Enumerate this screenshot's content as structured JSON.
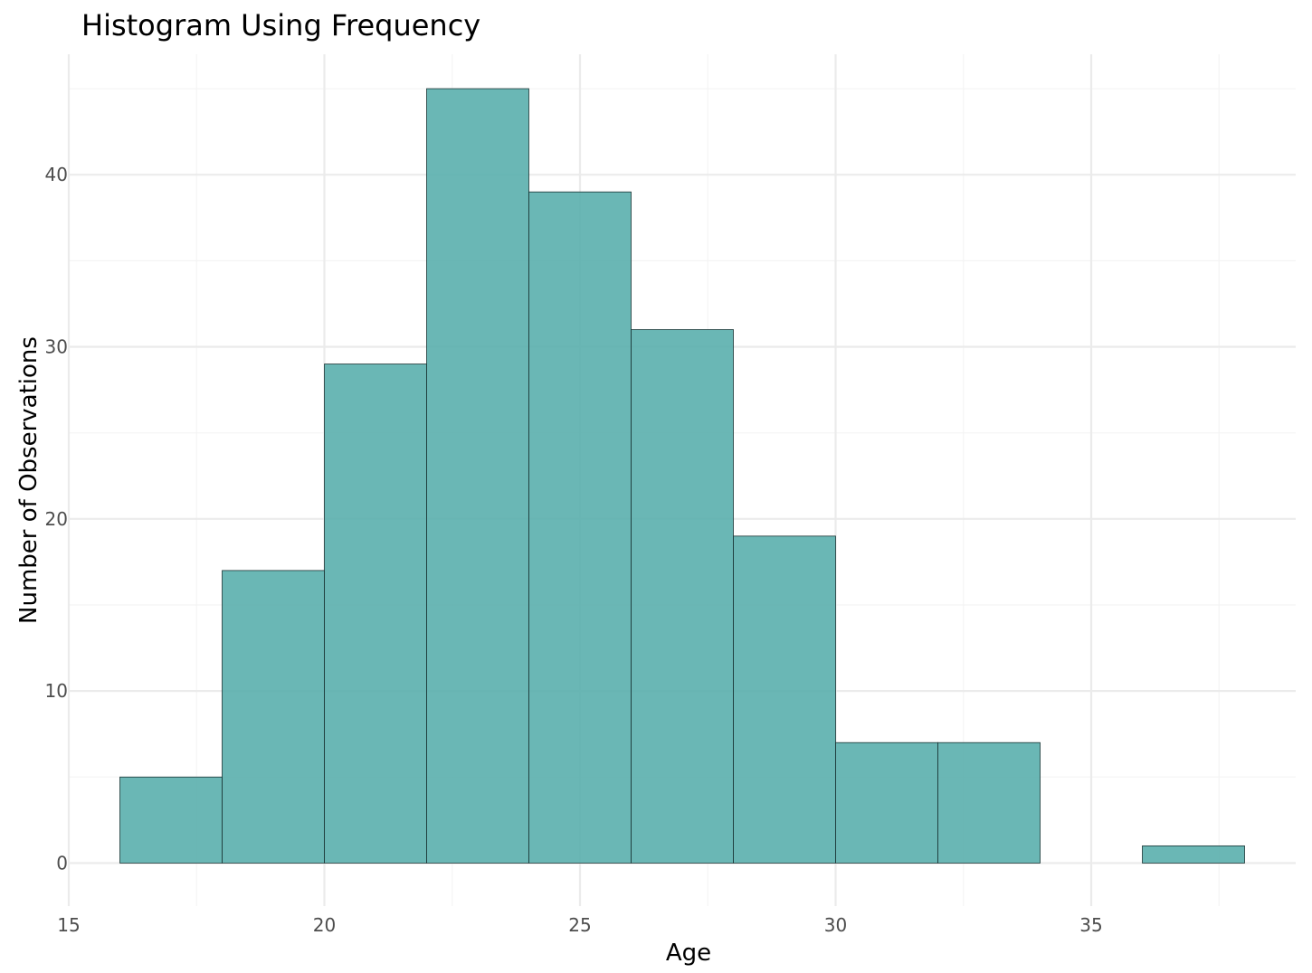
{
  "chart_data": {
    "type": "bar",
    "subtype": "histogram",
    "title": "Histogram Using Frequency",
    "xlabel": "Age",
    "ylabel": "Number of Observations",
    "bin_width": 2,
    "bins": [
      {
        "x0": 16,
        "x1": 18,
        "count": 5
      },
      {
        "x0": 18,
        "x1": 20,
        "count": 17
      },
      {
        "x0": 20,
        "x1": 22,
        "count": 29
      },
      {
        "x0": 22,
        "x1": 24,
        "count": 45
      },
      {
        "x0": 24,
        "x1": 26,
        "count": 39
      },
      {
        "x0": 26,
        "x1": 28,
        "count": 31
      },
      {
        "x0": 28,
        "x1": 30,
        "count": 19
      },
      {
        "x0": 30,
        "x1": 32,
        "count": 7
      },
      {
        "x0": 32,
        "x1": 34,
        "count": 7
      },
      {
        "x0": 34,
        "x1": 36,
        "count": 0
      },
      {
        "x0": 36,
        "x1": 38,
        "count": 1
      }
    ],
    "xlim": [
      15,
      39
    ],
    "ylim": [
      -2.5,
      47
    ],
    "x_ticks": [
      15,
      20,
      25,
      30,
      35
    ],
    "y_ticks": [
      0,
      10,
      20,
      30,
      40
    ],
    "x_minor_ticks": [
      17.5,
      22.5,
      27.5,
      32.5,
      37.5
    ],
    "y_minor_ticks": [
      5,
      15,
      25,
      35,
      45
    ],
    "grid": true,
    "legend": "none",
    "colors": {
      "fill": "#5aafad",
      "outline": "#1a3333",
      "grid": "#ebebeb"
    }
  }
}
